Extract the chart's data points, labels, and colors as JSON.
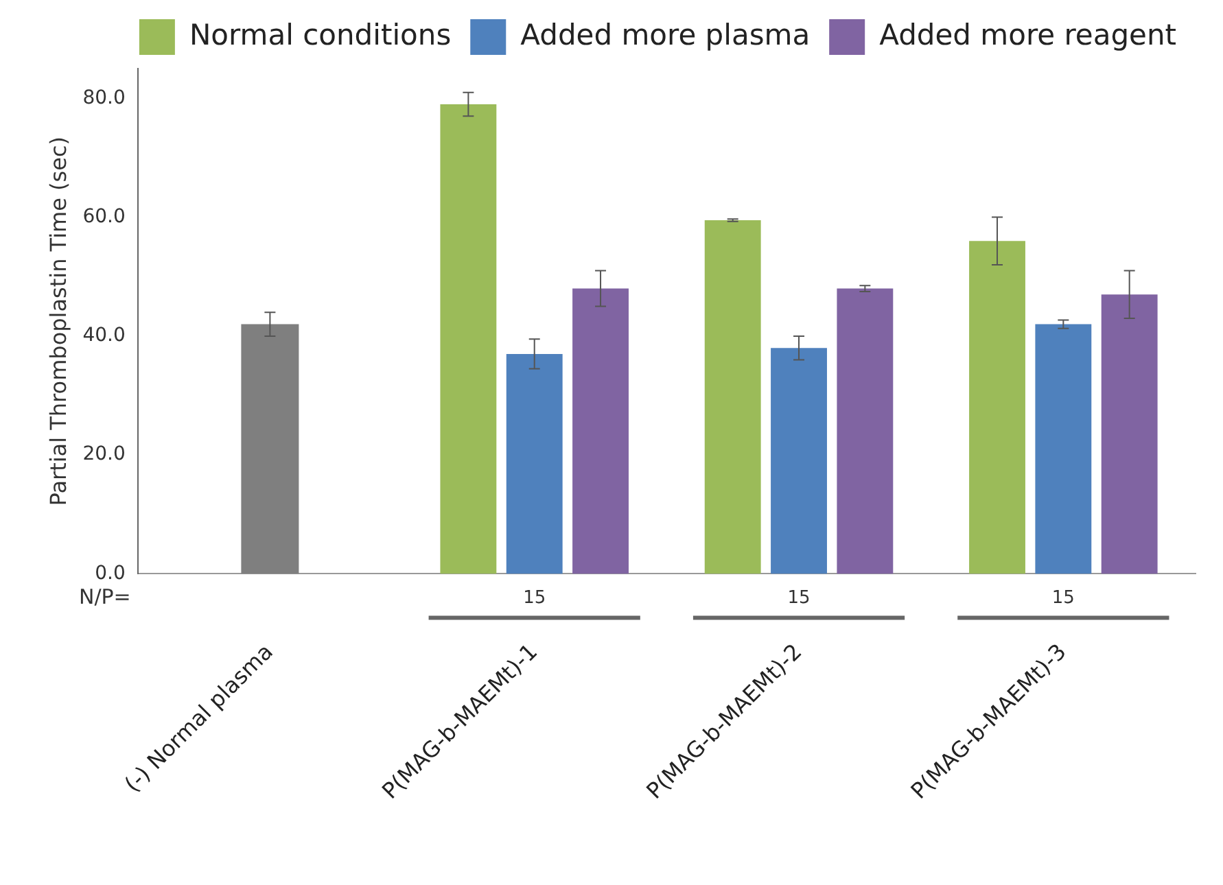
{
  "chart_data": {
    "type": "bar",
    "ylabel": "Partial Thromboplastin Time (sec)",
    "categories": [
      "(-) Normal plasma",
      "P(MAG-b-MAEMt)-1",
      "P(MAG-b-MAEMt)-2",
      "P(MAG-b-MAEMt)-3"
    ],
    "series": [
      {
        "color": "#7f7f7f",
        "values": [
          42,
          null,
          null,
          null
        ],
        "errors": [
          2,
          null,
          null,
          null
        ]
      },
      {
        "name": "Normal conditions",
        "color": "#9bbb59",
        "values": [
          null,
          79,
          59.5,
          56
        ],
        "errors": [
          null,
          2,
          0.2,
          4
        ]
      },
      {
        "name": "Added more plasma",
        "color": "#4f81bd",
        "values": [
          null,
          37,
          38,
          42
        ],
        "errors": [
          null,
          2.5,
          2,
          0.7
        ]
      },
      {
        "name": "Added more reagent",
        "color": "#8064a2",
        "values": [
          null,
          48,
          48,
          47
        ],
        "errors": [
          null,
          3,
          0.5,
          4
        ]
      }
    ],
    "ylim": [
      0,
      85
    ],
    "yticks": [
      {
        "value": 0,
        "label": "0.0"
      },
      {
        "value": 20,
        "label": "20.0"
      },
      {
        "value": 40,
        "label": "40.0"
      },
      {
        "value": 60,
        "label": "60.0"
      },
      {
        "value": 80,
        "label": "80.0"
      }
    ],
    "annotations": [
      "N/P=",
      "15",
      "15",
      "15"
    ],
    "grid": false,
    "legend": "top"
  }
}
